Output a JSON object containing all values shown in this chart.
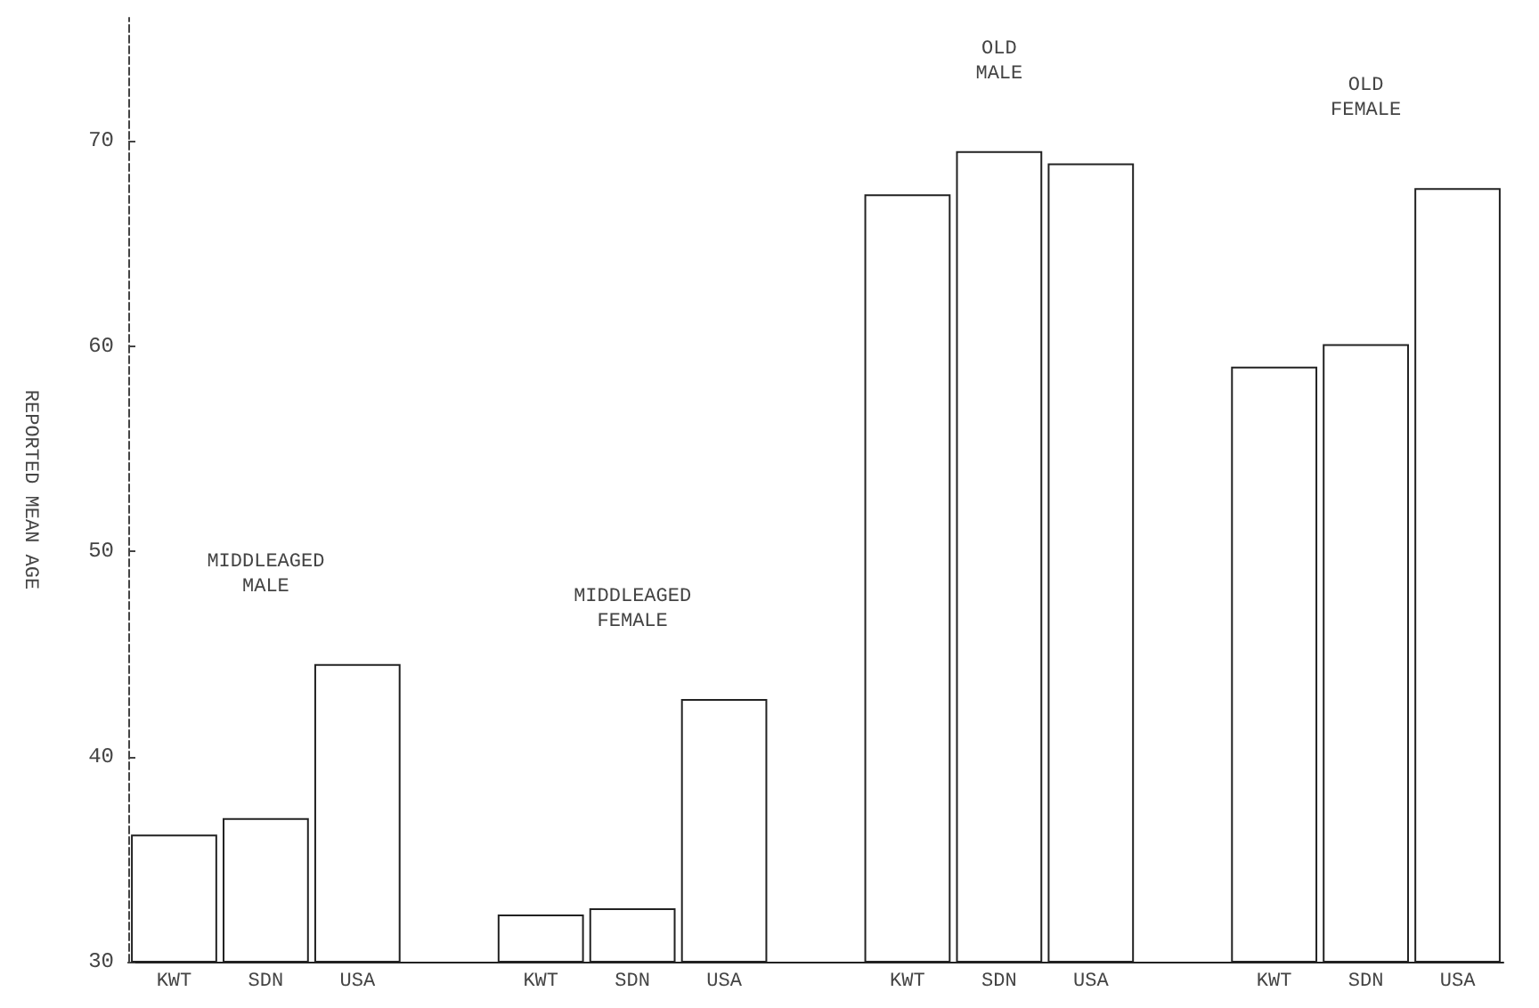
{
  "chart_data": {
    "type": "bar",
    "ylabel": "REPORTED MEAN AGE",
    "categories": [
      "KWT",
      "SDN",
      "USA",
      null,
      "KWT",
      "SDN",
      "USA",
      null,
      "KWT",
      "SDN",
      "USA",
      null,
      "KWT",
      "SDN",
      "USA"
    ],
    "values": [
      36.2,
      37.0,
      44.5,
      null,
      32.3,
      32.6,
      42.8,
      null,
      67.4,
      69.5,
      68.9,
      null,
      59.0,
      60.1,
      67.7
    ],
    "color": "#ffffff",
    "annotations": [
      "MIDDLEAGED\nMALE",
      "MIDDLEAGED\nFEMALE",
      "OLD\nMALE",
      "OLD\nFEMALE"
    ],
    "ylim": [
      30,
      76
    ],
    "yticks": [
      30,
      40,
      50,
      60,
      70
    ],
    "grid": false
  }
}
